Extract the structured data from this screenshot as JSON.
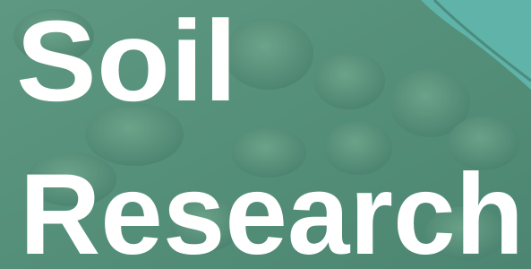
{
  "title": {
    "line1": "Soil",
    "line2": "Research"
  }
}
